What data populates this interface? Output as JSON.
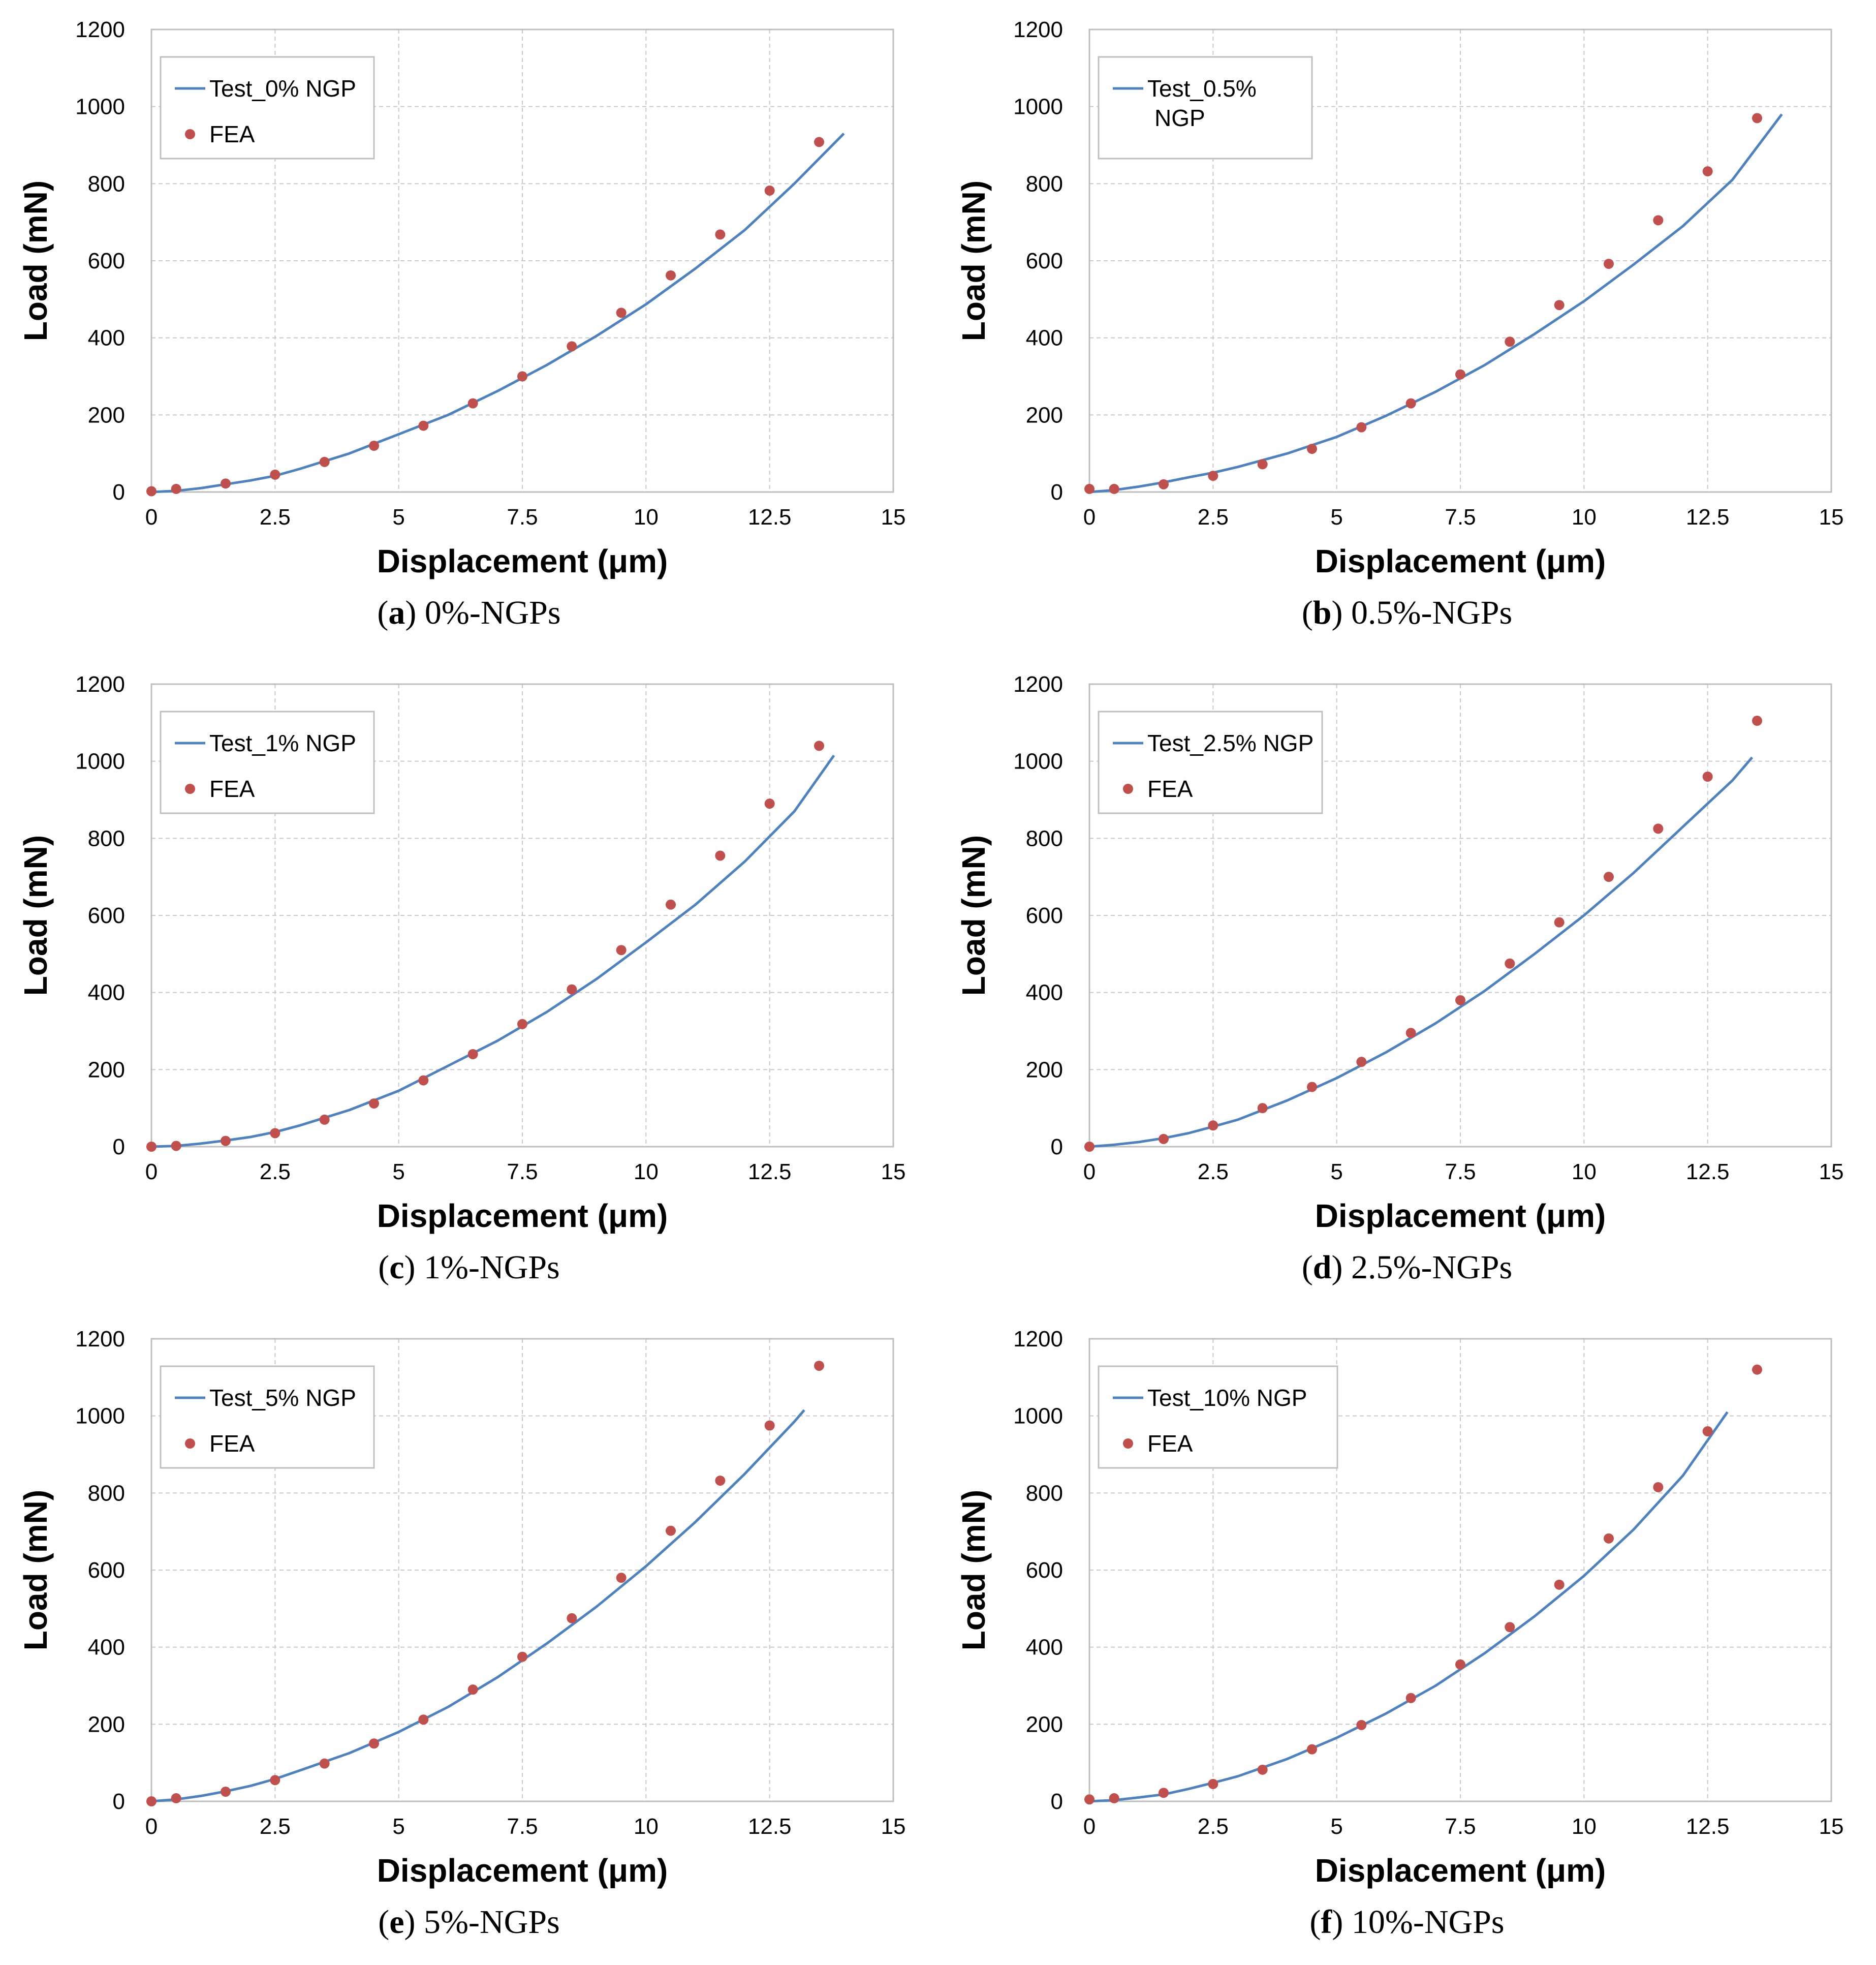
{
  "colors": {
    "test_line": "#4f81bd",
    "fea_marker": "#c0504d",
    "grid": "#c8c8c8"
  },
  "chart_data": [
    {
      "type": "line",
      "panel_letter": "a",
      "caption_text": "0%-NGPs",
      "xlabel": "Displacement (μm)",
      "ylabel": "Load (mN)",
      "xlim": [
        0,
        15
      ],
      "ylim": [
        0,
        1200
      ],
      "x_ticks": [
        "0",
        "2.5",
        "5",
        "7.5",
        "10",
        "12.5",
        "15"
      ],
      "y_ticks": [
        "0",
        "200",
        "400",
        "600",
        "800",
        "1000",
        "1200"
      ],
      "legend_test": "Test_0% NGP",
      "legend_fea": "FEA",
      "test": {
        "x": [
          0,
          0.5,
          1,
          1.5,
          2,
          2.5,
          3,
          4,
          5,
          6,
          7,
          8,
          9,
          10,
          11,
          12,
          13,
          14
        ],
        "y": [
          0,
          3,
          10,
          20,
          30,
          42,
          60,
          100,
          150,
          200,
          262,
          330,
          405,
          487,
          580,
          680,
          800,
          930
        ]
      },
      "fea": {
        "x": [
          0,
          0.5,
          1.5,
          2.5,
          3.5,
          4.5,
          5.5,
          6.5,
          7.5,
          8.5,
          9.5,
          10.5,
          11.5,
          12.5,
          13.5
        ],
        "y": [
          2,
          8,
          22,
          45,
          78,
          120,
          172,
          230,
          300,
          378,
          465,
          562,
          668,
          782,
          908
        ]
      }
    },
    {
      "type": "line",
      "panel_letter": "b",
      "caption_text": "0.5%-NGPs",
      "xlabel": "Displacement (μm)",
      "ylabel": "Load (mN)",
      "xlim": [
        0,
        15
      ],
      "ylim": [
        0,
        1200
      ],
      "x_ticks": [
        "0",
        "2.5",
        "5",
        "7.5",
        "10",
        "12.5",
        "15"
      ],
      "y_ticks": [
        "0",
        "200",
        "400",
        "600",
        "800",
        "1000",
        "1200"
      ],
      "legend_test": "Test_0.5% NGP",
      "legend_fea": "",
      "test": {
        "x": [
          0,
          0.5,
          1,
          1.5,
          2,
          2.5,
          3,
          4,
          5,
          6,
          7,
          8,
          9,
          10,
          11,
          12,
          13,
          14
        ],
        "y": [
          0,
          5,
          14,
          25,
          38,
          50,
          65,
          100,
          143,
          198,
          260,
          330,
          410,
          495,
          590,
          690,
          810,
          980
        ]
      },
      "fea": {
        "x": [
          0,
          0.5,
          1.5,
          2.5,
          3.5,
          4.5,
          5.5,
          6.5,
          7.5,
          8.5,
          9.5,
          10.5,
          11.5,
          12.5,
          13.5
        ],
        "y": [
          8,
          8,
          20,
          42,
          72,
          112,
          168,
          230,
          305,
          390,
          485,
          592,
          705,
          832,
          970
        ]
      }
    },
    {
      "type": "line",
      "panel_letter": "c",
      "caption_text": "1%-NGPs",
      "xlabel": "Displacement (μm)",
      "ylabel": "Load (mN)",
      "xlim": [
        0,
        15
      ],
      "ylim": [
        0,
        1200
      ],
      "x_ticks": [
        "0",
        "2.5",
        "5",
        "7.5",
        "10",
        "12.5",
        "15"
      ],
      "y_ticks": [
        "0",
        "200",
        "400",
        "600",
        "800",
        "1000",
        "1200"
      ],
      "legend_test": "Test_1% NGP",
      "legend_fea": "FEA",
      "test": {
        "x": [
          0,
          0.5,
          1,
          1.5,
          2,
          2.5,
          3,
          4,
          5,
          6,
          7,
          8,
          9,
          10,
          11,
          12,
          13,
          13.8
        ],
        "y": [
          0,
          2,
          8,
          16,
          25,
          38,
          55,
          95,
          145,
          210,
          275,
          350,
          435,
          530,
          628,
          740,
          870,
          1015
        ]
      },
      "fea": {
        "x": [
          0,
          0.5,
          1.5,
          2.5,
          3.5,
          4.5,
          5.5,
          6.5,
          7.5,
          8.5,
          9.5,
          10.5,
          11.5,
          12.5,
          13.5
        ],
        "y": [
          0,
          2,
          15,
          35,
          70,
          112,
          172,
          240,
          318,
          408,
          510,
          628,
          755,
          890,
          1040
        ]
      }
    },
    {
      "type": "line",
      "panel_letter": "d",
      "caption_text": "2.5%-NGPs",
      "xlabel": "Displacement (μm)",
      "ylabel": "Load (mN)",
      "xlim": [
        0,
        15
      ],
      "ylim": [
        0,
        1200
      ],
      "x_ticks": [
        "0",
        "2.5",
        "5",
        "7.5",
        "10",
        "12.5",
        "15"
      ],
      "y_ticks": [
        "0",
        "200",
        "400",
        "600",
        "800",
        "1000",
        "1200"
      ],
      "legend_test": "Test_2.5% NGP",
      "legend_fea": "FEA",
      "test": {
        "x": [
          0,
          0.5,
          1,
          1.5,
          2,
          2.5,
          3,
          4,
          5,
          6,
          7,
          8,
          9,
          10,
          11,
          12,
          13,
          13.4
        ],
        "y": [
          0,
          5,
          12,
          22,
          35,
          52,
          70,
          120,
          178,
          245,
          320,
          405,
          500,
          600,
          710,
          830,
          950,
          1010
        ]
      },
      "fea": {
        "x": [
          0,
          1.5,
          2.5,
          3.5,
          4.5,
          5.5,
          6.5,
          7.5,
          8.5,
          9.5,
          10.5,
          11.5,
          12.5,
          13.5
        ],
        "y": [
          0,
          20,
          55,
          100,
          155,
          220,
          295,
          380,
          475,
          582,
          700,
          825,
          960,
          1105
        ]
      }
    },
    {
      "type": "line",
      "panel_letter": "e",
      "caption_text": "5%-NGPs",
      "xlabel": "Displacement (μm)",
      "ylabel": "Load (mN)",
      "xlim": [
        0,
        15
      ],
      "ylim": [
        0,
        1200
      ],
      "x_ticks": [
        "0",
        "2.5",
        "5",
        "7.5",
        "10",
        "12.5",
        "15"
      ],
      "y_ticks": [
        "0",
        "200",
        "400",
        "600",
        "800",
        "1000",
        "1200"
      ],
      "legend_test": "Test_5% NGP",
      "legend_fea": "FEA",
      "test": {
        "x": [
          0,
          0.5,
          1,
          1.5,
          2,
          2.5,
          3,
          4,
          5,
          6,
          7,
          8,
          9,
          10,
          11,
          12,
          13,
          13.2
        ],
        "y": [
          0,
          5,
          14,
          26,
          40,
          58,
          80,
          125,
          180,
          245,
          322,
          410,
          505,
          610,
          725,
          850,
          985,
          1015
        ]
      },
      "fea": {
        "x": [
          0,
          0.5,
          1.5,
          2.5,
          3.5,
          4.5,
          5.5,
          6.5,
          7.5,
          8.5,
          9.5,
          10.5,
          11.5,
          12.5,
          13.5
        ],
        "y": [
          0,
          8,
          25,
          55,
          98,
          150,
          212,
          290,
          375,
          475,
          580,
          702,
          832,
          975,
          1130
        ]
      }
    },
    {
      "type": "line",
      "panel_letter": "f",
      "caption_text": "10%-NGPs",
      "xlabel": "Displacement (μm)",
      "ylabel": "Load (mN)",
      "xlim": [
        0,
        15
      ],
      "ylim": [
        0,
        1200
      ],
      "x_ticks": [
        "0",
        "2.5",
        "5",
        "7.5",
        "10",
        "12.5",
        "15"
      ],
      "y_ticks": [
        "0",
        "200",
        "400",
        "600",
        "800",
        "1000",
        "1200"
      ],
      "legend_test": "Test_10% NGP",
      "legend_fea": "FEA",
      "test": {
        "x": [
          0,
          0.5,
          1,
          1.5,
          2,
          2.5,
          3,
          4,
          5,
          6,
          7,
          8,
          9,
          10,
          11,
          12,
          12.9
        ],
        "y": [
          0,
          3,
          10,
          18,
          32,
          48,
          65,
          110,
          165,
          228,
          300,
          385,
          480,
          585,
          705,
          845,
          1010
        ]
      },
      "fea": {
        "x": [
          0,
          0.5,
          1.5,
          2.5,
          3.5,
          4.5,
          5.5,
          6.5,
          7.5,
          8.5,
          9.5,
          10.5,
          11.5,
          12.5,
          13.5
        ],
        "y": [
          5,
          8,
          22,
          45,
          82,
          135,
          198,
          268,
          355,
          452,
          562,
          682,
          815,
          960,
          1120
        ]
      }
    }
  ]
}
